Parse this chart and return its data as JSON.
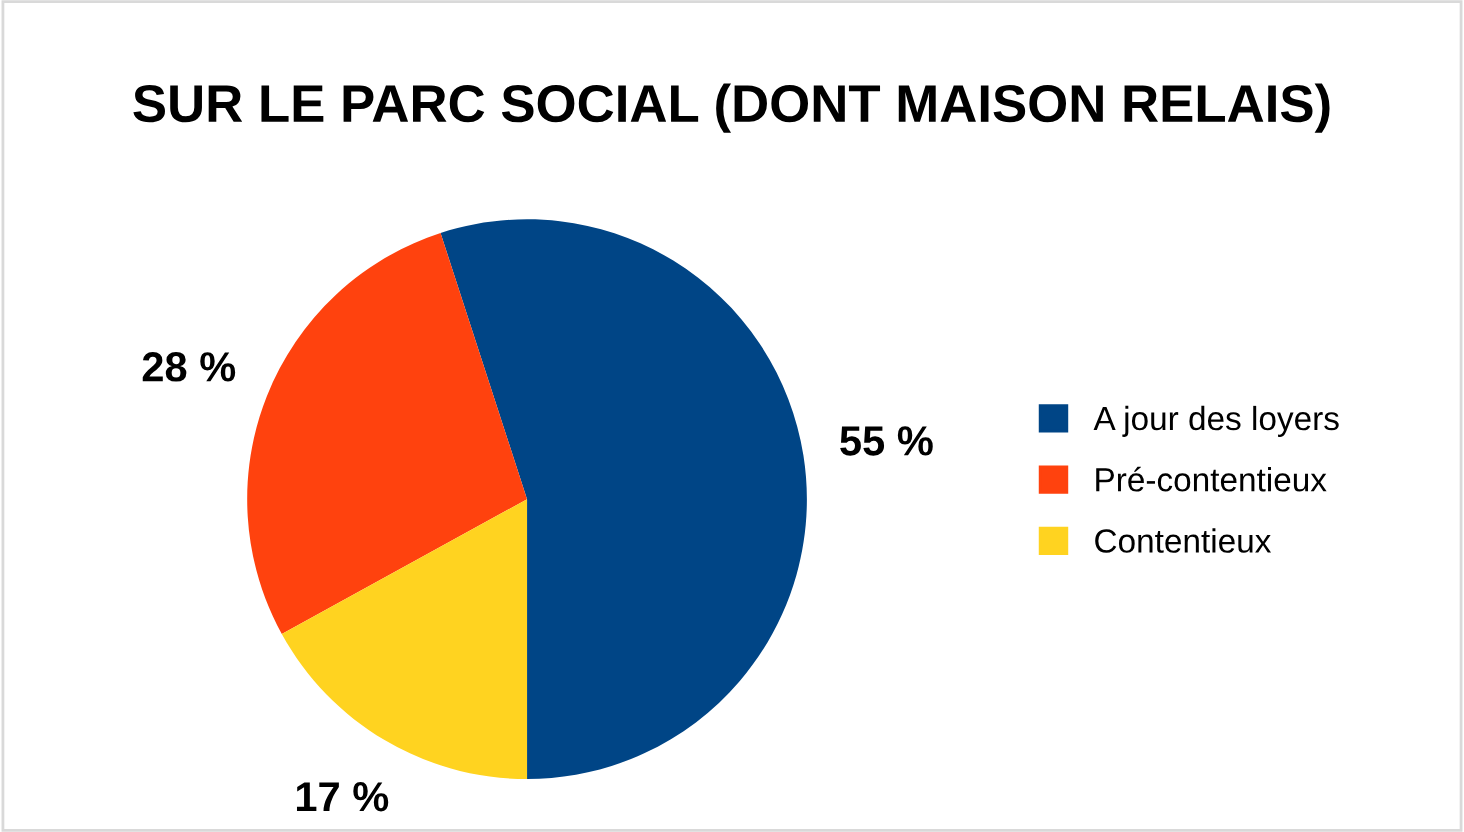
{
  "chart_data": {
    "type": "pie",
    "title": "SUR LE PARC SOCIAL (DONT MAISON RELAIS)",
    "categories": [
      "A jour des loyers",
      "Pré-contentieux",
      "Contentieux"
    ],
    "values": [
      55,
      28,
      17
    ],
    "value_labels": [
      "55 %",
      "28 %",
      "17 %"
    ],
    "colors": [
      "#004586",
      "#ff420e",
      "#ffd320"
    ],
    "legend": "right"
  }
}
